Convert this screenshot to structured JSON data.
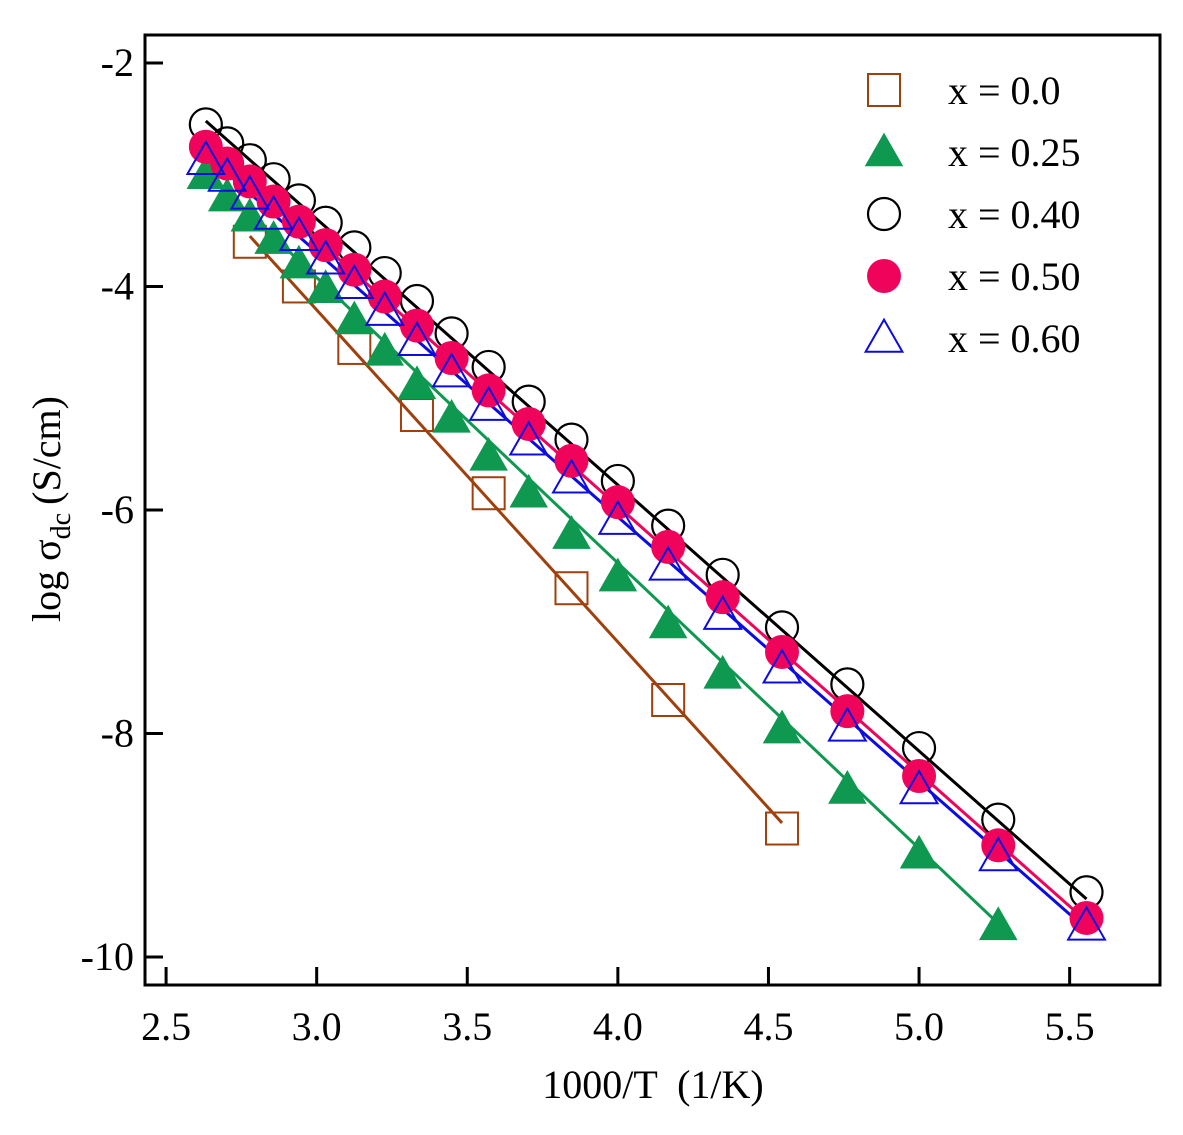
{
  "chart_data": {
    "type": "scatter",
    "xlabel": "1000/T  (1/K)",
    "ylabel": "log σ",
    "ylabel_sub": "dc",
    "ylabel_unit": "(S/cm)",
    "xlim": [
      2.43,
      5.8
    ],
    "ylim": [
      -10.25,
      -1.75
    ],
    "xticks": [
      2.5,
      3.0,
      3.5,
      4.0,
      4.5,
      5.0,
      5.5
    ],
    "xtick_labels": [
      "2.5",
      "3.0",
      "3.5",
      "4.0",
      "4.5",
      "5.0",
      "5.5"
    ],
    "yticks": [
      -2,
      -4,
      -6,
      -8,
      -10
    ],
    "ytick_labels": [
      "-2",
      "-4",
      "-6",
      "-8",
      "-10"
    ],
    "grid": false,
    "legend_position": "top-right",
    "series": [
      {
        "name": "x = 0.0",
        "marker": "square-open",
        "color": "#a0410d",
        "x": [
          2.778,
          2.941,
          3.125,
          3.333,
          3.571,
          3.846,
          4.167,
          4.545
        ],
        "y": [
          -3.6,
          -4.0,
          -4.55,
          -5.15,
          -5.85,
          -6.7,
          -7.7,
          -8.85
        ],
        "fit": [
          [
            2.778,
            -3.55
          ],
          [
            4.545,
            -8.8
          ]
        ]
      },
      {
        "name": "x = 0.25",
        "marker": "triangle-filled",
        "color": "#0f9850",
        "x": [
          2.632,
          2.703,
          2.778,
          2.857,
          2.941,
          3.03,
          3.125,
          3.226,
          3.333,
          3.448,
          3.571,
          3.704,
          3.846,
          4.0,
          4.167,
          4.348,
          4.545,
          4.762,
          5.0,
          5.263
        ],
        "y": [
          -3.0,
          -3.2,
          -3.38,
          -3.58,
          -3.8,
          -4.02,
          -4.3,
          -4.58,
          -4.88,
          -5.18,
          -5.52,
          -5.85,
          -6.22,
          -6.6,
          -7.02,
          -7.47,
          -7.96,
          -8.5,
          -9.08,
          -9.72
        ],
        "fit": [
          [
            2.632,
            -2.98
          ],
          [
            5.263,
            -9.7
          ]
        ]
      },
      {
        "name": "x = 0.40",
        "marker": "circle-open",
        "color": "#000000",
        "x": [
          2.632,
          2.703,
          2.778,
          2.857,
          2.941,
          3.03,
          3.125,
          3.226,
          3.333,
          3.448,
          3.571,
          3.704,
          3.846,
          4.0,
          4.167,
          4.348,
          4.545,
          4.762,
          5.0,
          5.263,
          5.556
        ],
        "y": [
          -2.55,
          -2.72,
          -2.87,
          -3.04,
          -3.23,
          -3.43,
          -3.65,
          -3.88,
          -4.13,
          -4.42,
          -4.72,
          -5.03,
          -5.37,
          -5.74,
          -6.14,
          -6.58,
          -7.05,
          -7.56,
          -8.13,
          -8.77,
          -9.42
        ],
        "fit": [
          [
            2.632,
            -2.52
          ],
          [
            5.556,
            -9.48
          ]
        ]
      },
      {
        "name": "x = 0.50",
        "marker": "circle-filled",
        "color": "#f0045b",
        "x": [
          2.632,
          2.703,
          2.778,
          2.857,
          2.941,
          3.03,
          3.125,
          3.226,
          3.333,
          3.448,
          3.571,
          3.704,
          3.846,
          4.0,
          4.167,
          4.348,
          4.545,
          4.762,
          5.0,
          5.263,
          5.556
        ],
        "y": [
          -2.75,
          -2.9,
          -3.06,
          -3.24,
          -3.42,
          -3.63,
          -3.85,
          -4.09,
          -4.35,
          -4.64,
          -4.93,
          -5.23,
          -5.56,
          -5.93,
          -6.33,
          -6.78,
          -7.27,
          -7.8,
          -8.38,
          -9.0,
          -9.65
        ],
        "fit": [
          [
            2.632,
            -2.7
          ],
          [
            5.556,
            -9.68
          ]
        ]
      },
      {
        "name": "x = 0.60",
        "marker": "triangle-open",
        "color": "#0c0ce0",
        "x": [
          2.632,
          2.703,
          2.778,
          2.857,
          2.941,
          3.03,
          3.125,
          3.226,
          3.333,
          3.448,
          3.571,
          3.704,
          3.846,
          4.0,
          4.167,
          4.348,
          4.545,
          4.762,
          5.0,
          5.263,
          5.556
        ],
        "y": [
          -2.87,
          -3.02,
          -3.18,
          -3.36,
          -3.55,
          -3.76,
          -3.98,
          -4.22,
          -4.49,
          -4.77,
          -5.07,
          -5.38,
          -5.72,
          -6.09,
          -6.5,
          -6.94,
          -7.42,
          -7.94,
          -8.5,
          -9.1,
          -9.72
        ],
        "fit": [
          [
            2.632,
            -2.82
          ],
          [
            5.556,
            -9.75
          ]
        ]
      }
    ]
  }
}
